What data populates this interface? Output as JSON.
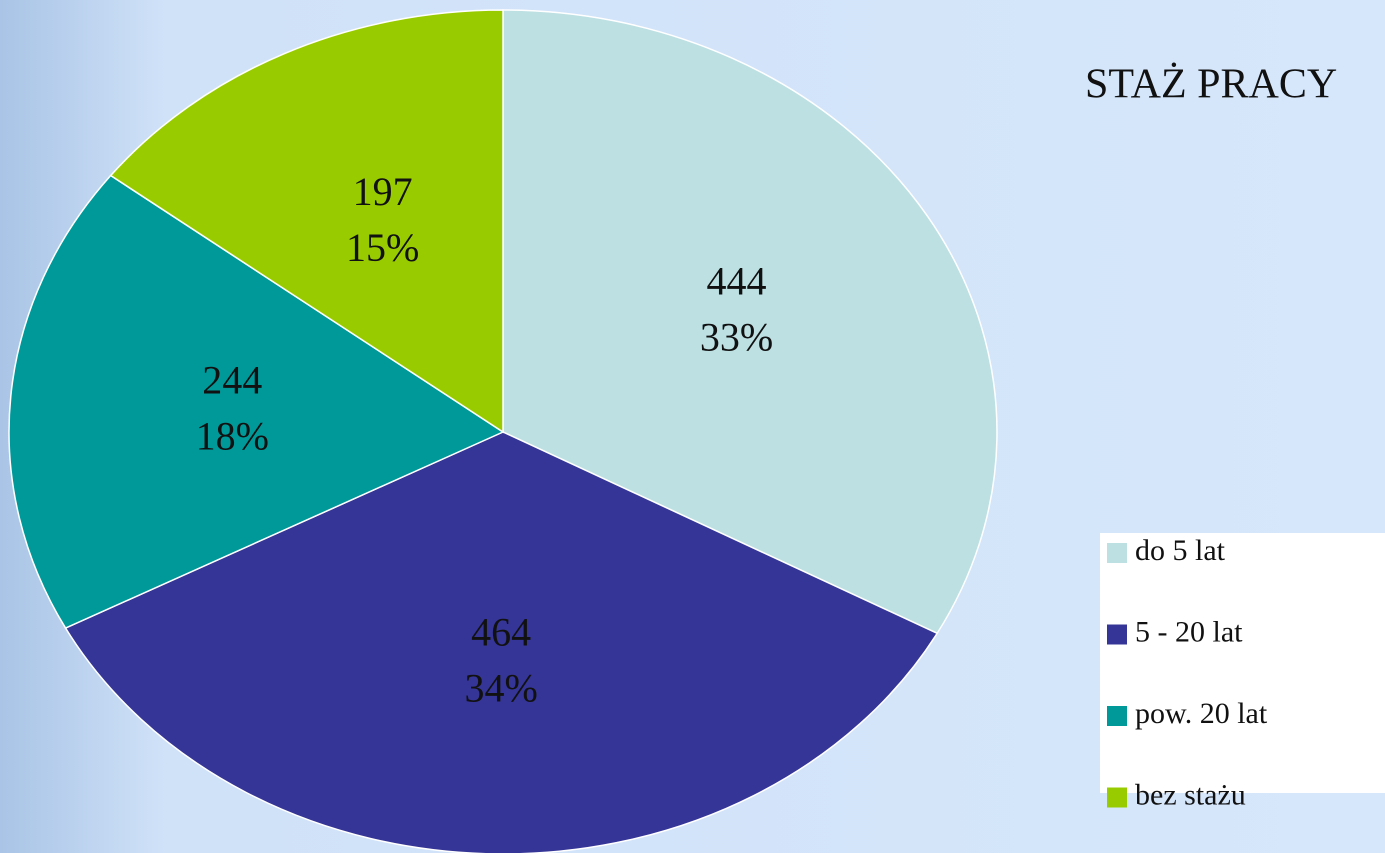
{
  "chart_data": {
    "type": "pie",
    "title": "STAŻ PRACY",
    "categories": [
      "do 5 lat",
      "5 - 20 lat",
      "pow. 20 lat",
      "bez stażu"
    ],
    "values": [
      444,
      464,
      244,
      197
    ],
    "percentages": [
      33,
      34,
      18,
      15
    ],
    "percentage_labels": [
      "33%",
      "34%",
      "18%",
      "15%"
    ],
    "colors": [
      "#bde0e3",
      "#353597",
      "#009999",
      "#99cc00"
    ],
    "legend": "right"
  }
}
